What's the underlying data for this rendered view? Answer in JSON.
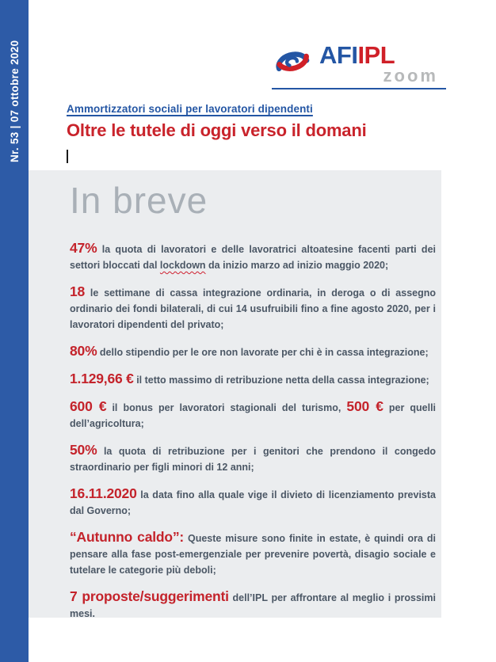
{
  "colors": {
    "sidebar_blue": "#2d5ba7",
    "logo_blue": "#2456a4",
    "logo_red": "#d02028",
    "accent_red": "#c4232b",
    "body_text": "#4b5765",
    "box_gray": "#ebedef",
    "heading_gray": "#a9b0b7"
  },
  "sidebar": {
    "issue_label": "Nr. 53 | 07 ottobre 2020"
  },
  "logo": {
    "afi": "AFI",
    "ipl": "IPL",
    "zoom": "zoom",
    "mark": "swirl-globe-icon"
  },
  "header": {
    "kicker": "Ammortizzatori sociali per lavoratori dipendenti",
    "title": "Oltre le tutele di oggi verso il domani"
  },
  "in_breve": {
    "heading": "In breve",
    "items": [
      [
        {
          "kind": "lead",
          "text": "47%"
        },
        {
          "kind": "body",
          "text": " la quota di lavoratori e delle lavoratrici altoatesine facenti parti dei settori bloccati dal "
        },
        {
          "kind": "spell",
          "text": "lockdown"
        },
        {
          "kind": "body",
          "text": " da inizio marzo ad inizio maggio 2020;"
        }
      ],
      [
        {
          "kind": "lead",
          "text": "18"
        },
        {
          "kind": "body",
          "text": " le settimane di cassa integrazione ordinaria, in deroga o di assegno ordinario dei fondi bilaterali, di cui 14 usufruibili fino a fine agosto 2020, per i lavoratori dipendenti del privato;"
        }
      ],
      [
        {
          "kind": "lead",
          "text": "80%"
        },
        {
          "kind": "body",
          "text": " dello stipendio per le ore non lavorate per chi è in cassa integrazione;"
        }
      ],
      [
        {
          "kind": "lead",
          "text": "1.129,66 €"
        },
        {
          "kind": "body",
          "text": " il tetto massimo di retribuzione netta della cassa integrazione;"
        }
      ],
      [
        {
          "kind": "lead",
          "text": "600 €"
        },
        {
          "kind": "body",
          "text": " il bonus per lavoratori stagionali del turismo, "
        },
        {
          "kind": "lead",
          "text": "500 €"
        },
        {
          "kind": "body",
          "text": " per quelli dell’agricoltura;"
        }
      ],
      [
        {
          "kind": "lead",
          "text": "50%"
        },
        {
          "kind": "body",
          "text": " la quota di retribuzione per i genitori che prendono il congedo straordinario per figli minori di 12 anni;"
        }
      ],
      [
        {
          "kind": "lead",
          "text": "16.11.2020"
        },
        {
          "kind": "body",
          "text": " la data fino alla quale vige il divieto di licenziamento prevista dal Governo;"
        }
      ],
      [
        {
          "kind": "lead",
          "text": "“Autunno caldo”:"
        },
        {
          "kind": "body",
          "text": " Queste misure sono finite in estate, è quindi ora di pensare alla fase post-emergenziale per prevenire povertà, disagio sociale e tutelare le categorie più deboli;"
        }
      ],
      [
        {
          "kind": "lead",
          "text": "7 proposte/suggerimenti"
        },
        {
          "kind": "body",
          "text": " dell’IPL per affrontare al meglio i prossimi mesi."
        }
      ]
    ]
  }
}
